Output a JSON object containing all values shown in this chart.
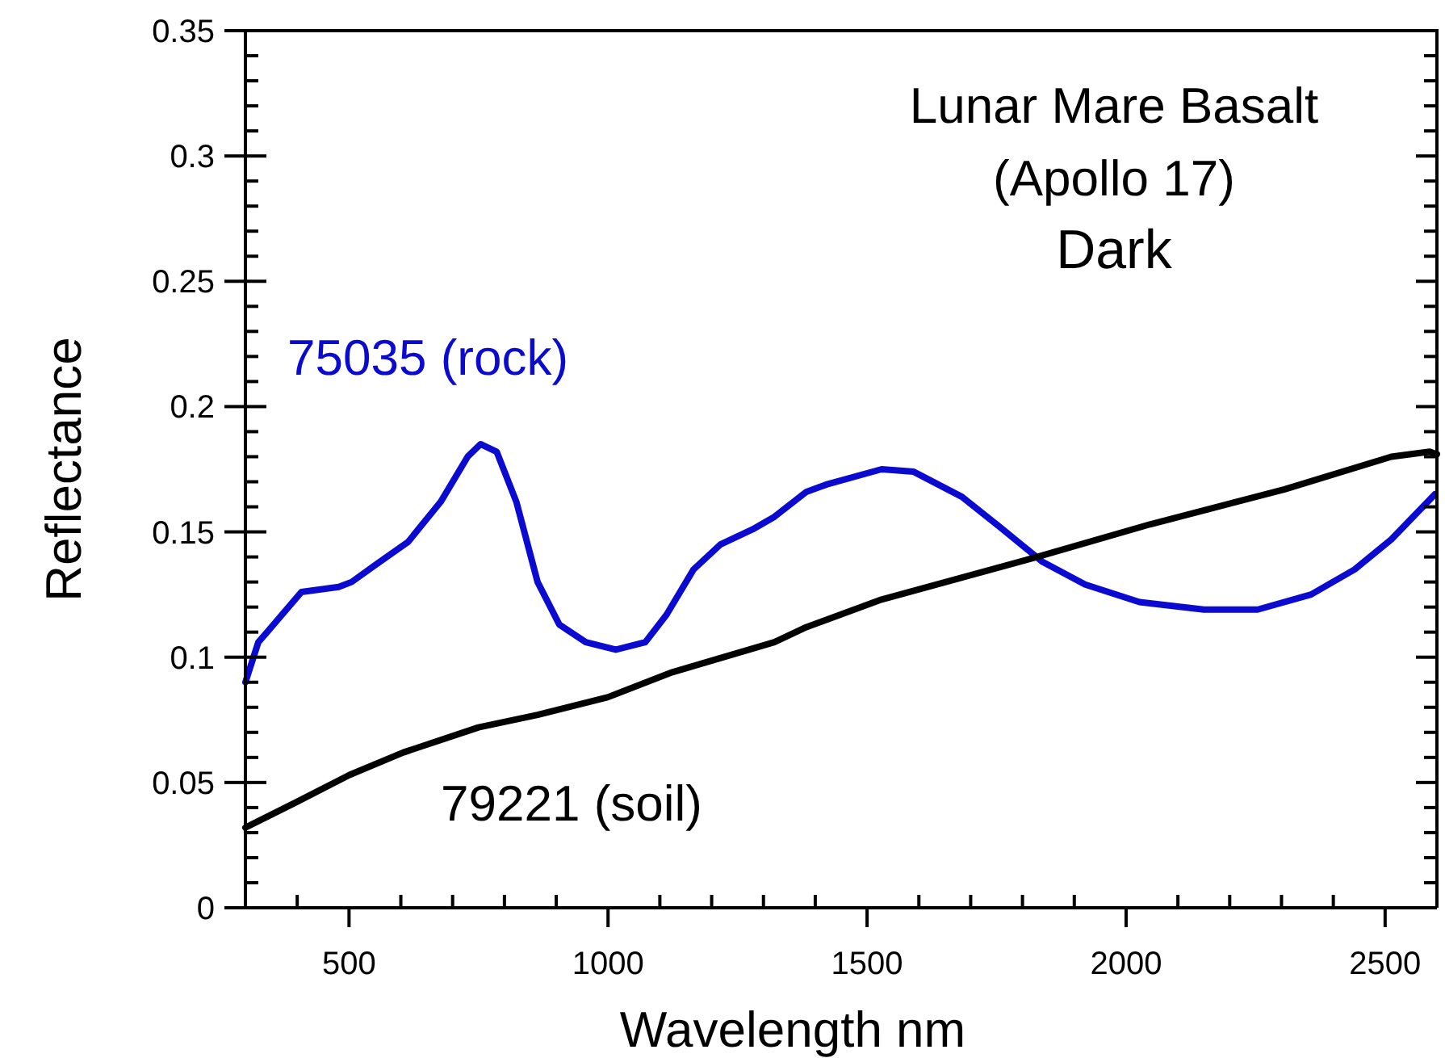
{
  "chart_data": {
    "type": "line",
    "xlabel": "Wavelength nm",
    "ylabel": "Reflectance",
    "annotations": [
      "Lunar Mare Basalt",
      "(Apollo 17)",
      "Dark"
    ],
    "xlim": [
      300,
      2600
    ],
    "xticks": [
      500,
      1000,
      1500,
      2000,
      2500
    ],
    "ylim": [
      0,
      0.35
    ],
    "yticks": [
      0,
      0.05,
      0.1,
      0.15,
      0.2,
      0.25,
      0.3,
      0.35
    ],
    "grid": false,
    "marker": "none",
    "line_style": "solid",
    "series": [
      {
        "name": "75035 (rock)",
        "color": "#0a0ad0",
        "x": [
          300,
          325,
          346,
          408,
          480,
          505,
          552,
          614,
          677,
          729,
          754,
          785,
          823,
          864,
          906,
          957,
          1015,
          1072,
          1113,
          1165,
          1217,
          1279,
          1321,
          1383,
          1423,
          1528,
          1590,
          1683,
          1756,
          1839,
          1921,
          2026,
          2150,
          2254,
          2357,
          2441,
          2512,
          2596
        ],
        "values": [
          0.09,
          0.106,
          0.111,
          0.126,
          0.128,
          0.13,
          0.137,
          0.146,
          0.162,
          0.18,
          0.185,
          0.182,
          0.162,
          0.13,
          0.113,
          0.106,
          0.103,
          0.106,
          0.117,
          0.135,
          0.145,
          0.151,
          0.156,
          0.166,
          0.169,
          0.175,
          0.174,
          0.164,
          0.152,
          0.138,
          0.129,
          0.122,
          0.119,
          0.119,
          0.125,
          0.135,
          0.147,
          0.165
        ]
      },
      {
        "name": "79221 (soil)",
        "color": "#000000",
        "x": [
          300,
          397,
          501,
          605,
          750,
          864,
          999,
          1124,
          1321,
          1383,
          1528,
          1828,
          2046,
          2306,
          2512,
          2586,
          2600
        ],
        "values": [
          0.032,
          0.042,
          0.053,
          0.062,
          0.072,
          0.077,
          0.084,
          0.094,
          0.106,
          0.112,
          0.123,
          0.14,
          0.153,
          0.167,
          0.18,
          0.182,
          0.181
        ]
      }
    ]
  }
}
